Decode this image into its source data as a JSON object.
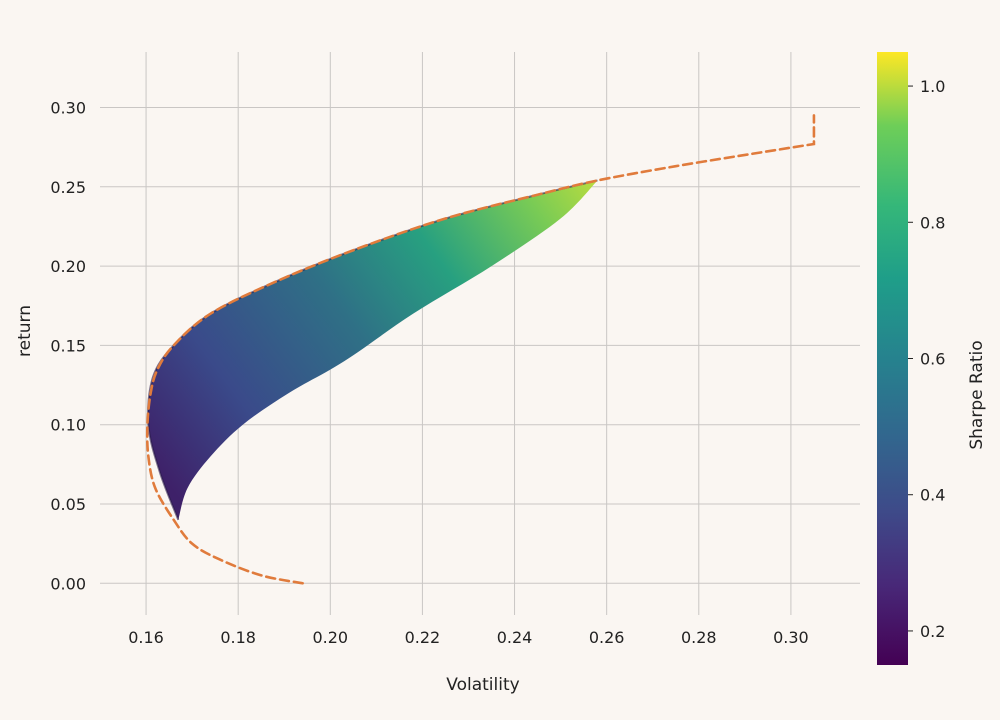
{
  "chart_data": {
    "type": "scatter",
    "xlabel": "Volatility",
    "ylabel": "return",
    "xlim": [
      0.15,
      0.315
    ],
    "ylim": [
      -0.02,
      0.335
    ],
    "x_ticks": [
      0.16,
      0.18,
      0.2,
      0.22,
      0.24,
      0.26,
      0.28,
      0.3
    ],
    "y_ticks": [
      0.0,
      0.05,
      0.1,
      0.15,
      0.2,
      0.25,
      0.3
    ],
    "x_tick_labels": [
      "0.16",
      "0.18",
      "0.20",
      "0.22",
      "0.24",
      "0.26",
      "0.28",
      "0.30"
    ],
    "y_tick_labels": [
      "0.00",
      "0.05",
      "0.10",
      "0.15",
      "0.20",
      "0.25",
      "0.30"
    ],
    "grid": true,
    "colorbar": {
      "label": "Sharpe Ratio",
      "range": [
        0.15,
        1.05
      ],
      "ticks": [
        0.2,
        0.4,
        0.6,
        0.8,
        1.0
      ],
      "tick_labels": [
        "0.2",
        "0.4",
        "0.6",
        "0.8",
        "1.0"
      ],
      "colormap": "viridis"
    },
    "feasible_region": {
      "upper_edge": [
        [
          0.167,
          0.04
        ],
        [
          0.163,
          0.07
        ],
        [
          0.1605,
          0.1
        ],
        [
          0.1615,
          0.13
        ],
        [
          0.166,
          0.15
        ],
        [
          0.174,
          0.17
        ],
        [
          0.188,
          0.19
        ],
        [
          0.205,
          0.21
        ],
        [
          0.225,
          0.23
        ],
        [
          0.245,
          0.245
        ],
        [
          0.258,
          0.254
        ]
      ],
      "lower_edge": [
        [
          0.167,
          0.04
        ],
        [
          0.169,
          0.06
        ],
        [
          0.174,
          0.08
        ],
        [
          0.181,
          0.1
        ],
        [
          0.191,
          0.12
        ],
        [
          0.203,
          0.14
        ],
        [
          0.218,
          0.17
        ],
        [
          0.235,
          0.2
        ],
        [
          0.25,
          0.23
        ],
        [
          0.258,
          0.254
        ]
      ]
    },
    "frontier_line": {
      "style": "dashed",
      "color": "#e07b3c",
      "points": [
        [
          0.194,
          0.0
        ],
        [
          0.185,
          0.005
        ],
        [
          0.176,
          0.015
        ],
        [
          0.17,
          0.025
        ],
        [
          0.166,
          0.04
        ],
        [
          0.162,
          0.06
        ],
        [
          0.1605,
          0.08
        ],
        [
          0.1603,
          0.1
        ],
        [
          0.161,
          0.12
        ],
        [
          0.1625,
          0.135
        ],
        [
          0.166,
          0.15
        ],
        [
          0.174,
          0.17
        ],
        [
          0.188,
          0.19
        ],
        [
          0.205,
          0.21
        ],
        [
          0.225,
          0.23
        ],
        [
          0.245,
          0.245
        ],
        [
          0.258,
          0.254
        ],
        [
          0.275,
          0.263
        ],
        [
          0.292,
          0.271
        ],
        [
          0.305,
          0.277
        ],
        [
          0.305,
          0.295
        ]
      ]
    }
  }
}
